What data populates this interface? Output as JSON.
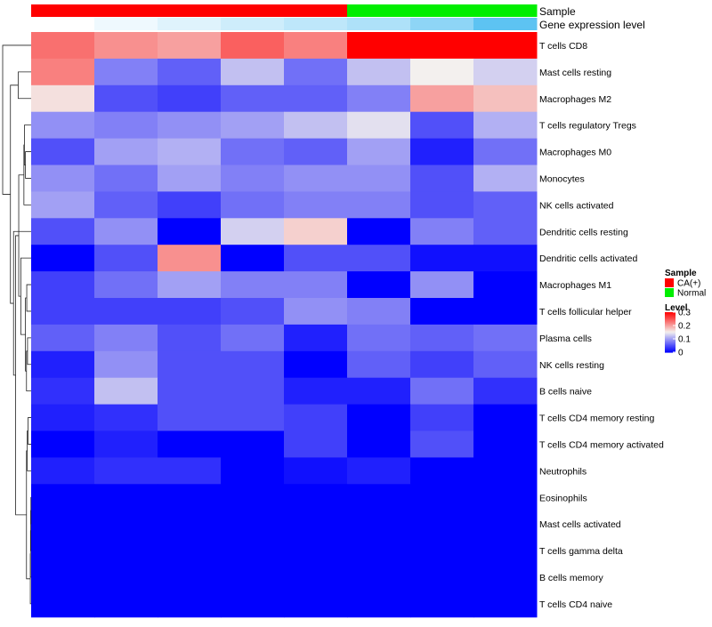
{
  "chart_data": {
    "type": "heatmap",
    "row_labels": [
      "T cells CD8",
      "Mast cells resting",
      "Macrophages M2",
      "T cells regulatory  Tregs",
      "Macrophages M0",
      "Monocytes",
      "NK cells activated",
      "Dendritic cells resting",
      "Dendritic cells activated",
      "Macrophages M1",
      "T cells follicular helper",
      "Plasma cells",
      "NK cells resting",
      "B cells naive",
      "T cells CD4 memory resting",
      "T cells CD4 memory activated",
      "Neutrophils",
      "Eosinophils",
      "Mast cells activated",
      "T cells gamma delta",
      "B cells memory",
      "T cells CD4 naive"
    ],
    "n_samples": 8,
    "values": [
      [
        0.23,
        0.21,
        0.2,
        0.24,
        0.22,
        0.3,
        0.3,
        0.3
      ],
      [
        0.22,
        0.08,
        0.06,
        0.12,
        0.07,
        0.12,
        0.15,
        0.13
      ],
      [
        0.16,
        0.05,
        0.04,
        0.06,
        0.06,
        0.08,
        0.2,
        0.18
      ],
      [
        0.09,
        0.08,
        0.09,
        0.1,
        0.12,
        0.14,
        0.05,
        0.11
      ],
      [
        0.05,
        0.1,
        0.11,
        0.07,
        0.06,
        0.1,
        0.02,
        0.07
      ],
      [
        0.09,
        0.07,
        0.1,
        0.08,
        0.09,
        0.09,
        0.05,
        0.11
      ],
      [
        0.1,
        0.06,
        0.04,
        0.07,
        0.08,
        0.08,
        0.05,
        0.06
      ],
      [
        0.05,
        0.09,
        0.0,
        0.13,
        0.17,
        0.0,
        0.08,
        0.06
      ],
      [
        0.0,
        0.05,
        0.21,
        0.0,
        0.05,
        0.05,
        0.01,
        0.01
      ],
      [
        0.04,
        0.07,
        0.1,
        0.08,
        0.08,
        0.0,
        0.09,
        0.0
      ],
      [
        0.04,
        0.04,
        0.04,
        0.05,
        0.09,
        0.08,
        0.0,
        0.0
      ],
      [
        0.06,
        0.08,
        0.05,
        0.07,
        0.02,
        0.07,
        0.06,
        0.07
      ],
      [
        0.02,
        0.09,
        0.05,
        0.05,
        0.0,
        0.06,
        0.04,
        0.06
      ],
      [
        0.03,
        0.12,
        0.05,
        0.05,
        0.02,
        0.02,
        0.07,
        0.03
      ],
      [
        0.02,
        0.03,
        0.05,
        0.05,
        0.04,
        0.0,
        0.04,
        0.0
      ],
      [
        0.0,
        0.02,
        0.0,
        0.0,
        0.04,
        0.0,
        0.05,
        0.0
      ],
      [
        0.02,
        0.03,
        0.03,
        0.0,
        0.01,
        0.02,
        0.0,
        0.0
      ],
      [
        0.0,
        0.0,
        0.0,
        0.0,
        0.0,
        0.0,
        0.0,
        0.0
      ],
      [
        0.0,
        0.0,
        0.0,
        0.0,
        0.0,
        0.0,
        0.0,
        0.0
      ],
      [
        0.0,
        0.0,
        0.0,
        0.0,
        0.0,
        0.0,
        0.0,
        0.0
      ],
      [
        0.0,
        0.0,
        0.0,
        0.0,
        0.0,
        0.0,
        0.0,
        0.0
      ],
      [
        0.0,
        0.0,
        0.0,
        0.0,
        0.0,
        0.0,
        0.0,
        0.0
      ]
    ],
    "annotations": {
      "sample": {
        "label": "Sample",
        "values": [
          "CA(+)",
          "CA(+)",
          "CA(+)",
          "CA(+)",
          "CA(+)",
          "Normal",
          "Normal",
          "Normal"
        ]
      },
      "gene_expression": {
        "label": "Gene expression level",
        "values": [
          0.0,
          0.05,
          0.1,
          0.15,
          0.2,
          0.25,
          0.35,
          0.5
        ]
      }
    },
    "color_scale": {
      "min": 0,
      "mid": 0.15,
      "max": 0.3,
      "low_color": "#0000ff",
      "mid_color": "#f3f0ee",
      "high_color": "#ff0000"
    },
    "gene_expression_colors": {
      "low": "#ffffff",
      "high": "#5dc3f2"
    },
    "sample_colors": {
      "CA(+)": "#ff0000",
      "Normal": "#00ee00"
    },
    "legends": {
      "sample": {
        "title": "Sample",
        "entries": [
          "CA(+)",
          "Normal"
        ]
      },
      "level": {
        "title": "Level",
        "ticks": [
          "0.3",
          "0.2",
          "0.1",
          "0"
        ],
        "tick_values": [
          0.3,
          0.2,
          0.1,
          0
        ]
      }
    },
    "dendrogram": {
      "merges": [
        [
          17,
          18,
          0.004
        ],
        [
          -1,
          19,
          0.008
        ],
        [
          -2,
          20,
          0.012
        ],
        [
          -3,
          21,
          0.016
        ],
        [
          14,
          15,
          0.06
        ],
        [
          -5,
          16,
          0.075
        ],
        [
          -6,
          -4,
          0.09
        ],
        [
          11,
          12,
          0.07
        ],
        [
          -8,
          13,
          0.09
        ],
        [
          9,
          10,
          0.085
        ],
        [
          -10,
          -9,
          0.11
        ],
        [
          -11,
          8,
          0.2
        ],
        [
          4,
          5,
          0.11
        ],
        [
          3,
          -13,
          0.13
        ],
        [
          -14,
          6,
          0.14
        ],
        [
          -15,
          -12,
          0.24
        ],
        [
          -16,
          -7,
          0.3
        ],
        [
          7,
          -17,
          0.34
        ],
        [
          1,
          2,
          0.25
        ],
        [
          -19,
          -18,
          0.4
        ],
        [
          0,
          -20,
          0.55
        ]
      ]
    }
  }
}
